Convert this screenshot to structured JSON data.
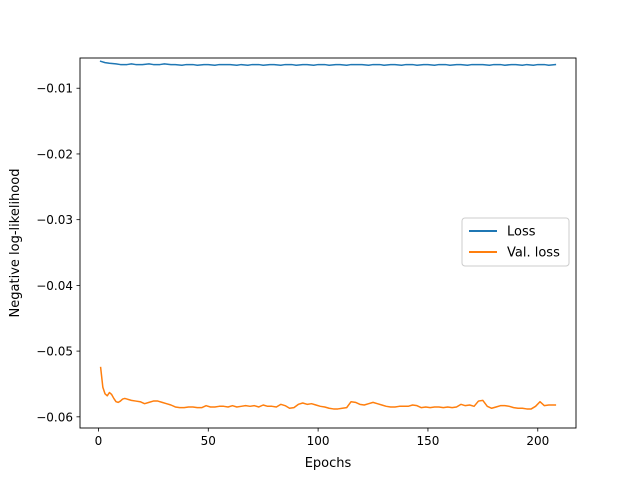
{
  "chart_data": {
    "type": "line",
    "title": "",
    "xlabel": "Epochs",
    "ylabel": "Negative log-likelihood",
    "xlim": [
      -8.4,
      217.4
    ],
    "ylim": [
      -0.0617,
      -0.0054
    ],
    "xticks": [
      0,
      50,
      100,
      150,
      200
    ],
    "xtick_labels": [
      "0",
      "50",
      "100",
      "150",
      "200"
    ],
    "yticks": [
      -0.01,
      -0.02,
      -0.03,
      -0.04,
      -0.05,
      -0.06
    ],
    "ytick_labels": [
      "−0.01",
      "−0.02",
      "−0.03",
      "−0.04",
      "−0.05",
      "−0.06"
    ],
    "grid": false,
    "legend_position": "center-right",
    "series": [
      {
        "name": "Loss",
        "color": "#1f77b4",
        "x": [
          1,
          3,
          5,
          8,
          10,
          13,
          15,
          17,
          20,
          23,
          25,
          28,
          30,
          33,
          35,
          38,
          40,
          43,
          45,
          48,
          50,
          53,
          55,
          58,
          60,
          63,
          65,
          68,
          70,
          73,
          75,
          78,
          80,
          83,
          85,
          88,
          90,
          93,
          95,
          98,
          100,
          103,
          105,
          108,
          110,
          113,
          115,
          118,
          120,
          123,
          125,
          128,
          130,
          133,
          135,
          138,
          140,
          143,
          145,
          148,
          150,
          153,
          155,
          158,
          160,
          163,
          165,
          168,
          170,
          173,
          175,
          178,
          180,
          183,
          185,
          188,
          190,
          193,
          195,
          198,
          200,
          203,
          205,
          208
        ],
        "values": [
          -0.0059,
          -0.0061,
          -0.0062,
          -0.0063,
          -0.0064,
          -0.0064,
          -0.0063,
          -0.0064,
          -0.0064,
          -0.0063,
          -0.0064,
          -0.0064,
          -0.0063,
          -0.0064,
          -0.0064,
          -0.0065,
          -0.0064,
          -0.0064,
          -0.0065,
          -0.0064,
          -0.0064,
          -0.0065,
          -0.0064,
          -0.0064,
          -0.0064,
          -0.0065,
          -0.0064,
          -0.0065,
          -0.0064,
          -0.0064,
          -0.0065,
          -0.0064,
          -0.0064,
          -0.0065,
          -0.0064,
          -0.0064,
          -0.0065,
          -0.0064,
          -0.0064,
          -0.0065,
          -0.0064,
          -0.0064,
          -0.0065,
          -0.0064,
          -0.0064,
          -0.0065,
          -0.0064,
          -0.0064,
          -0.0064,
          -0.0065,
          -0.0064,
          -0.0064,
          -0.0065,
          -0.0064,
          -0.0064,
          -0.0065,
          -0.0064,
          -0.0064,
          -0.0065,
          -0.0064,
          -0.0064,
          -0.0065,
          -0.0064,
          -0.0064,
          -0.0065,
          -0.0064,
          -0.0064,
          -0.0065,
          -0.0064,
          -0.0064,
          -0.0064,
          -0.0065,
          -0.0064,
          -0.0064,
          -0.0065,
          -0.0064,
          -0.0064,
          -0.0065,
          -0.0064,
          -0.0065,
          -0.0064,
          -0.0064,
          -0.0065,
          -0.0064
        ]
      },
      {
        "name": "Val. loss",
        "color": "#ff7f0e",
        "x": [
          1,
          2,
          3,
          4,
          5,
          6,
          7,
          8,
          9,
          10,
          11,
          12,
          13,
          15,
          17,
          19,
          21,
          23,
          25,
          27,
          29,
          31,
          33,
          35,
          37,
          39,
          41,
          43,
          45,
          47,
          49,
          51,
          53,
          55,
          57,
          59,
          61,
          63,
          65,
          67,
          69,
          71,
          73,
          75,
          77,
          79,
          81,
          83,
          85,
          87,
          89,
          91,
          93,
          95,
          97,
          99,
          101,
          103,
          105,
          107,
          109,
          111,
          113,
          115,
          117,
          119,
          121,
          123,
          125,
          127,
          129,
          131,
          133,
          135,
          137,
          139,
          141,
          143,
          145,
          147,
          149,
          151,
          153,
          155,
          157,
          159,
          161,
          163,
          165,
          167,
          169,
          171,
          173,
          175,
          177,
          179,
          181,
          183,
          185,
          187,
          189,
          191,
          193,
          195,
          197,
          199,
          201,
          203,
          205,
          207,
          208
        ],
        "values": [
          -0.0525,
          -0.0555,
          -0.0565,
          -0.0568,
          -0.0563,
          -0.0566,
          -0.0572,
          -0.0577,
          -0.0578,
          -0.0576,
          -0.0573,
          -0.0572,
          -0.0573,
          -0.0575,
          -0.0576,
          -0.0577,
          -0.058,
          -0.0578,
          -0.0576,
          -0.0576,
          -0.0578,
          -0.058,
          -0.0582,
          -0.0585,
          -0.0586,
          -0.0586,
          -0.0585,
          -0.0585,
          -0.0586,
          -0.0586,
          -0.0583,
          -0.0585,
          -0.0585,
          -0.0584,
          -0.0584,
          -0.0585,
          -0.0583,
          -0.0585,
          -0.0584,
          -0.0583,
          -0.0584,
          -0.0583,
          -0.0585,
          -0.0582,
          -0.0584,
          -0.0584,
          -0.0585,
          -0.0581,
          -0.0583,
          -0.0587,
          -0.0586,
          -0.0581,
          -0.0579,
          -0.0581,
          -0.058,
          -0.0582,
          -0.0584,
          -0.0585,
          -0.0587,
          -0.0588,
          -0.0588,
          -0.0587,
          -0.0586,
          -0.0577,
          -0.0578,
          -0.0581,
          -0.0582,
          -0.058,
          -0.0578,
          -0.058,
          -0.0582,
          -0.0584,
          -0.0585,
          -0.0585,
          -0.0584,
          -0.0584,
          -0.0584,
          -0.0582,
          -0.0583,
          -0.0586,
          -0.0585,
          -0.0586,
          -0.0585,
          -0.0585,
          -0.0586,
          -0.0585,
          -0.0586,
          -0.0585,
          -0.0581,
          -0.0583,
          -0.0582,
          -0.0584,
          -0.0576,
          -0.0575,
          -0.0584,
          -0.0587,
          -0.0585,
          -0.0583,
          -0.0583,
          -0.0584,
          -0.0586,
          -0.0587,
          -0.0587,
          -0.0588,
          -0.0588,
          -0.0584,
          -0.0577,
          -0.0583,
          -0.0582,
          -0.0582,
          -0.0582
        ]
      }
    ]
  }
}
